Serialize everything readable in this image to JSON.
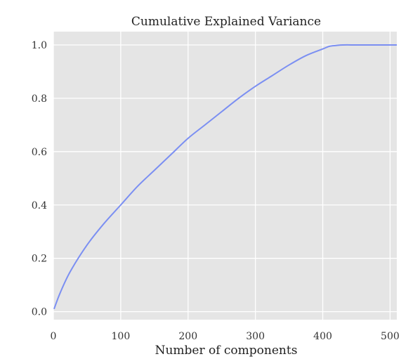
{
  "chart_data": {
    "type": "line",
    "title": "Cumulative Explained Variance",
    "xlabel": "Number of components",
    "ylabel": "",
    "xlim": [
      0,
      510
    ],
    "ylim": [
      -0.03,
      1.05
    ],
    "xticks": [
      0,
      100,
      200,
      300,
      400,
      500
    ],
    "yticks": [
      0.0,
      0.2,
      0.4,
      0.6,
      0.8,
      1.0
    ],
    "xtick_labels": [
      "0",
      "100",
      "200",
      "300",
      "400",
      "500"
    ],
    "ytick_labels": [
      "0.0",
      "0.2",
      "0.4",
      "0.6",
      "0.8",
      "1.0"
    ],
    "grid": true,
    "series": [
      {
        "color": "#7b8ff2",
        "x": [
          1,
          10,
          25,
          50,
          75,
          100,
          125,
          150,
          175,
          200,
          225,
          250,
          275,
          300,
          325,
          350,
          375,
          400,
          410,
          420,
          430,
          450,
          475,
          500,
          510
        ],
        "y": [
          0.01,
          0.07,
          0.15,
          0.25,
          0.33,
          0.4,
          0.47,
          0.53,
          0.59,
          0.65,
          0.7,
          0.75,
          0.8,
          0.845,
          0.885,
          0.925,
          0.96,
          0.985,
          0.995,
          0.998,
          1.0,
          1.0,
          1.0,
          1.0,
          1.0
        ]
      }
    ],
    "colors": {
      "background": "#e5e5e5",
      "grid": "#ffffff"
    }
  }
}
